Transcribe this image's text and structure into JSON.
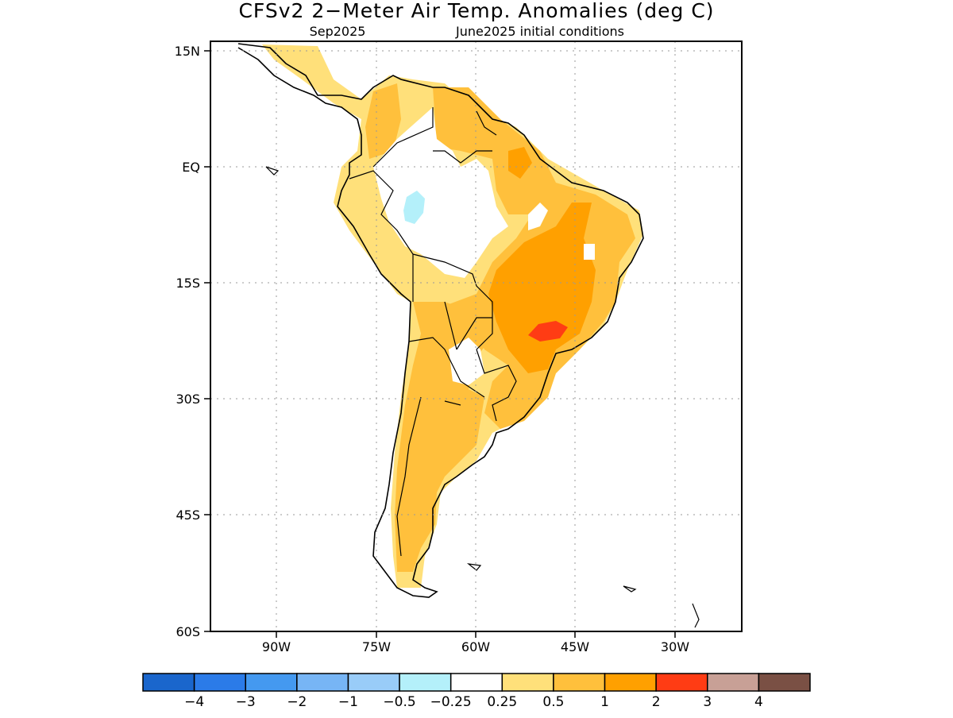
{
  "title": "CFSv2 2−Meter Air Temp. Anomalies (deg C)",
  "subtitle_left": "Sep2025",
  "subtitle_right": "June2025 initial conditions",
  "lat_labels": [
    "15N",
    "EQ",
    "15S",
    "30S",
    "45S",
    "60S"
  ],
  "lon_labels": [
    "90W",
    "75W",
    "60W",
    "45W",
    "30W"
  ],
  "legend": {
    "colors": [
      "#1a66cc",
      "#2b7be8",
      "#4499f0",
      "#77b5f5",
      "#99ccf8",
      "#b4f0fa",
      "#ffffff",
      "#ffe07a",
      "#ffc03c",
      "#ffa000",
      "#ff3c14",
      "#c8a096",
      "#7a5044"
    ],
    "labels": [
      "−4",
      "−3",
      "−2",
      "−1",
      "−0.5",
      "−0.25",
      "0.25",
      "0.5",
      "1",
      "2",
      "3",
      "4"
    ]
  }
}
